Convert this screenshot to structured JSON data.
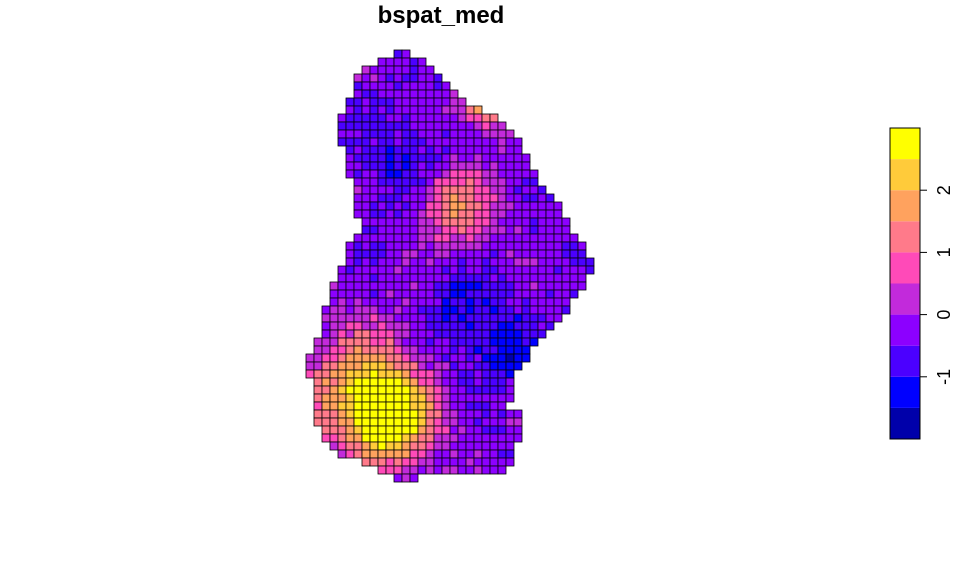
{
  "chart_data": {
    "type": "heatmap",
    "title": "bspat_med",
    "xlabel": "",
    "ylabel": "",
    "legend_placement": "right",
    "grid": false,
    "color_scale": {
      "min": -2.0,
      "max": 3.0,
      "bin_width": 0.5,
      "colors": [
        "#0000AA",
        "#0000FF",
        "#4B00FF",
        "#8C00FF",
        "#C22ADB",
        "#FF4AB8",
        "#FF7A8A",
        "#FFA25E",
        "#FFCB3A",
        "#FFFF00"
      ],
      "ticks": [
        -1,
        0,
        1,
        2
      ],
      "tick_labels": [
        "-1",
        "0",
        "1",
        "2"
      ]
    },
    "grid_size": {
      "cols": 30,
      "rows": 54
    },
    "row_extents": [
      [
        8,
        9
      ],
      [
        6,
        11
      ],
      [
        4,
        12
      ],
      [
        3,
        13
      ],
      [
        3,
        14
      ],
      [
        3,
        15
      ],
      [
        2,
        16
      ],
      [
        2,
        18
      ],
      [
        1,
        20
      ],
      [
        1,
        21
      ],
      [
        1,
        22
      ],
      [
        1,
        23
      ],
      [
        2,
        23
      ],
      [
        2,
        24
      ],
      [
        2,
        24
      ],
      [
        2,
        25
      ],
      [
        3,
        25
      ],
      [
        3,
        26
      ],
      [
        3,
        27
      ],
      [
        3,
        28
      ],
      [
        3,
        28
      ],
      [
        4,
        29
      ],
      [
        4,
        29
      ],
      [
        3,
        30
      ],
      [
        2,
        31
      ],
      [
        2,
        31
      ],
      [
        2,
        32
      ],
      [
        1,
        32
      ],
      [
        1,
        31
      ],
      [
        0,
        31
      ],
      [
        0,
        30
      ],
      [
        0,
        29
      ],
      [
        -1,
        29
      ],
      [
        -1,
        28
      ],
      [
        -1,
        27
      ],
      [
        -1,
        26
      ],
      [
        -2,
        25
      ],
      [
        -2,
        24
      ],
      [
        -3,
        24
      ],
      [
        -3,
        23
      ],
      [
        -3,
        22
      ],
      [
        -2,
        22
      ],
      [
        -2,
        22
      ],
      [
        -2,
        22
      ],
      [
        -2,
        21
      ],
      [
        -2,
        23
      ],
      [
        -2,
        23
      ],
      [
        -1,
        23
      ],
      [
        -1,
        23
      ],
      [
        0,
        22
      ],
      [
        1,
        22
      ],
      [
        4,
        22
      ],
      [
        6,
        21
      ],
      [
        8,
        10
      ]
    ],
    "hotspots": [
      {
        "col": 19.5,
        "row": 5.5,
        "value": 2.4,
        "spread": 2.5
      },
      {
        "col": 15,
        "row": 19,
        "value": 1.5,
        "spread": 3.5
      },
      {
        "col": 4,
        "row": 42,
        "value": 2.2,
        "spread": 5.0
      },
      {
        "col": 7,
        "row": 46,
        "value": 2.4,
        "spread": 3.5
      },
      {
        "col": 9,
        "row": 14,
        "value": -1.0,
        "spread": 4.0
      },
      {
        "col": 17,
        "row": 33,
        "value": -1.1,
        "spread": 4.0
      },
      {
        "col": 22,
        "row": 38,
        "value": -1.0,
        "spread": 3.0
      }
    ]
  }
}
